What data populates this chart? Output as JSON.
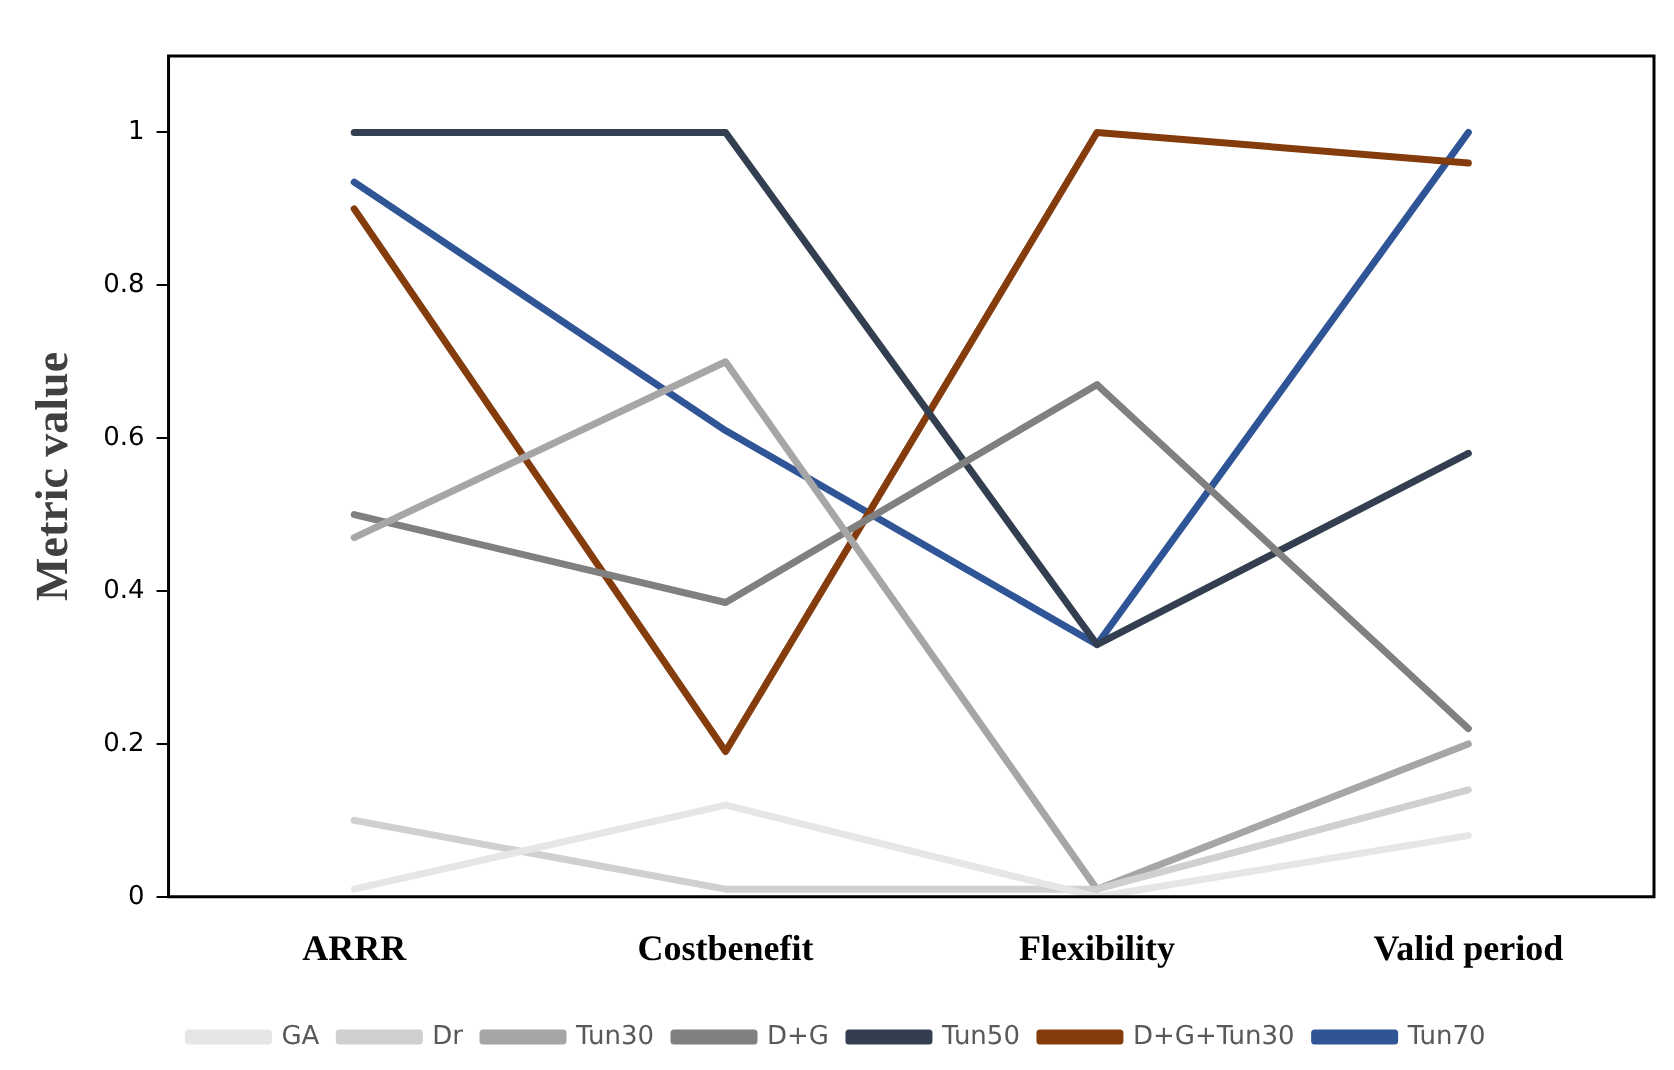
{
  "chart_data": {
    "type": "line",
    "ylabel": "Metric value",
    "categories": [
      "ARRR",
      "Costbenefit",
      "Flexibility",
      "Valid period"
    ],
    "series": [
      {
        "name": "GA",
        "color": "#e6e6e6",
        "values": [
          0.01,
          0.12,
          0,
          0.08
        ]
      },
      {
        "name": "Dr",
        "color": "#d0d0d0",
        "values": [
          0.1,
          0.01,
          0.01,
          0.14
        ]
      },
      {
        "name": "Tun30",
        "color": "#a6a6a6",
        "values": [
          0.47,
          0.7,
          0.01,
          0.2
        ]
      },
      {
        "name": "D+G",
        "color": "#808080",
        "values": [
          0.5,
          0.385,
          0.67,
          0.22
        ]
      },
      {
        "name": "Tun50",
        "color": "#333f50",
        "values": [
          1,
          1,
          0.33,
          0.58
        ]
      },
      {
        "name": "D+G+Tun30",
        "color": "#843c0c",
        "values": [
          0.9,
          0.19,
          1,
          0.96
        ]
      },
      {
        "name": "Tun70",
        "color": "#2f5597",
        "values": [
          0.935,
          0.61,
          0.33,
          1
        ]
      }
    ],
    "ylim": [
      0,
      1.1
    ],
    "yticks": [
      0,
      0.2,
      0.4,
      0.6,
      0.8,
      1
    ],
    "grid": false,
    "legend": "bottom",
    "marker": "none",
    "line_style": "solid"
  }
}
